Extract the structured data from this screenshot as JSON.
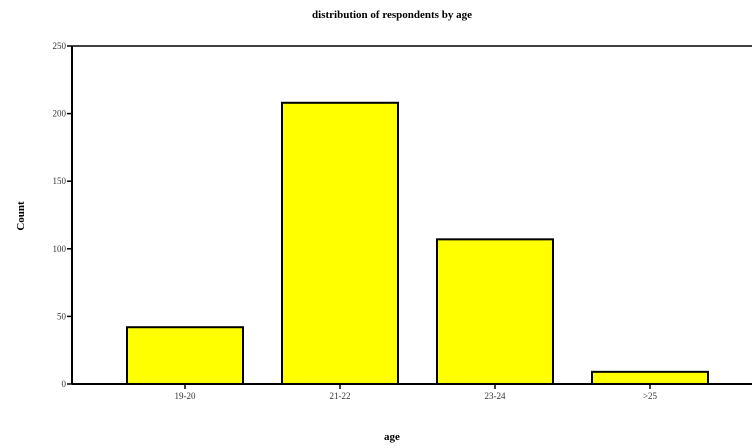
{
  "chart_data": {
    "type": "bar",
    "title": "distribution of respondents by age",
    "xlabel": "age",
    "ylabel": "Count",
    "categories": [
      "19-20",
      "21-22",
      "23-24",
      ">25"
    ],
    "values": [
      42,
      208,
      107,
      9
    ],
    "ylim": [
      0,
      250
    ],
    "yticks": [
      0,
      50,
      100,
      150,
      200,
      250
    ],
    "ytick_labels": [
      "0",
      "50",
      "100",
      "150",
      "200",
      "250"
    ],
    "grid": false,
    "legend": "none",
    "colors": {
      "bar_fill": "#ffff00",
      "bar_stroke": "#000000",
      "axis": "#000000"
    }
  }
}
